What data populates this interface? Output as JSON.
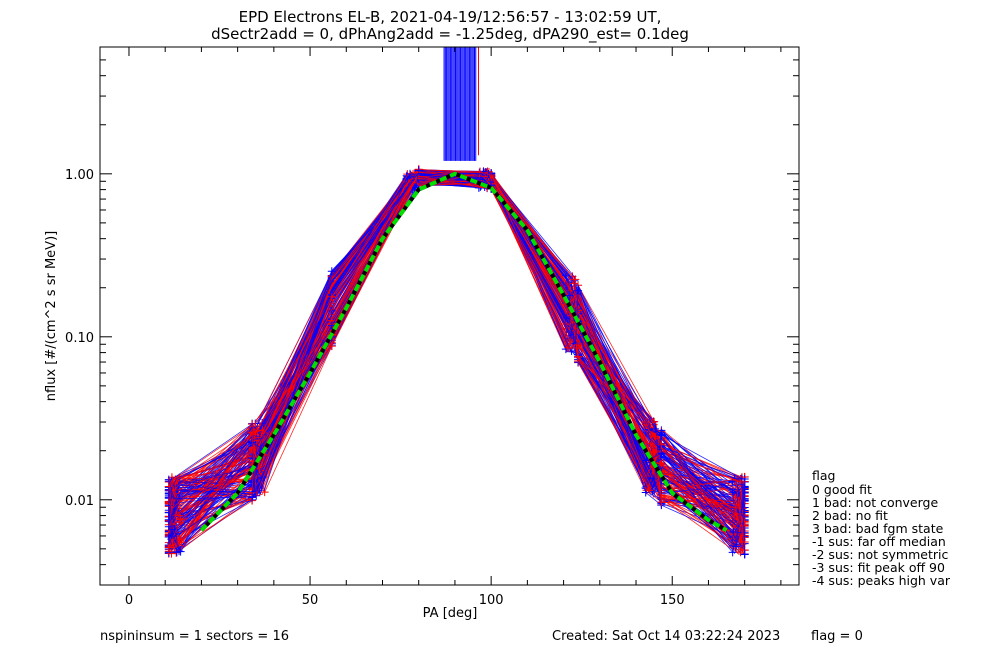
{
  "chart_data": {
    "type": "line",
    "title": "EPD Electrons EL-B, 2021-04-19/12:56:57 - 13:02:59 UT,",
    "subtitle": "dSectr2add = 0, dPhAng2add = -1.25deg, dPA290_est=   0.1deg",
    "xlabel": "PA [deg]",
    "ylabel": "nflux [#/(cm^2 s sr MeV)]",
    "xlim": [
      -8,
      185
    ],
    "ylim": [
      0.003,
      6.0
    ],
    "yscale": "log",
    "x_ticks": [
      0,
      50,
      100,
      150
    ],
    "x_tick_labels": [
      "0",
      "50",
      "100",
      "150"
    ],
    "y_ticks": [
      0.01,
      0.1,
      1.0
    ],
    "y_tick_labels": [
      "0.01",
      "0.10",
      "1.00"
    ],
    "grid": false,
    "colors": {
      "series_a": "#ff0000",
      "series_b": "#0000ff",
      "fit": "#00e000",
      "fit_core": "#000000"
    },
    "representative_profile": {
      "pa": [
        11,
        13,
        34,
        36,
        56,
        78,
        80,
        98,
        100,
        122,
        124,
        144,
        147,
        168,
        170
      ],
      "nflux": [
        0.008,
        0.008,
        0.017,
        0.018,
        0.15,
        0.9,
        0.95,
        0.92,
        0.9,
        0.14,
        0.12,
        0.018,
        0.016,
        0.008,
        0.008
      ]
    },
    "fit_curve": {
      "pa": [
        20,
        30,
        40,
        50,
        60,
        70,
        80,
        90,
        100,
        110,
        120,
        130,
        140,
        150,
        160,
        165
      ],
      "nflux": [
        0.0065,
        0.011,
        0.025,
        0.06,
        0.15,
        0.4,
        0.8,
        1.0,
        0.82,
        0.45,
        0.18,
        0.07,
        0.025,
        0.011,
        0.0075,
        0.0065
      ]
    },
    "legend": {
      "title": "flag",
      "entries": [
        " 0 good fit",
        " 1 bad: not converge",
        " 2 bad: no fit",
        " 3 bad: bad fgm state",
        "-1 sus: far off median",
        "-2 sus: not symmetric",
        "-3 sus: fit peak off 90",
        "-4 sus: peaks high var"
      ]
    }
  },
  "footer": {
    "left": "nspininsum =  1  sectors = 16",
    "created": "Created: Sat Oct 14 03:22:24 2023",
    "flag": "flag = 0"
  }
}
